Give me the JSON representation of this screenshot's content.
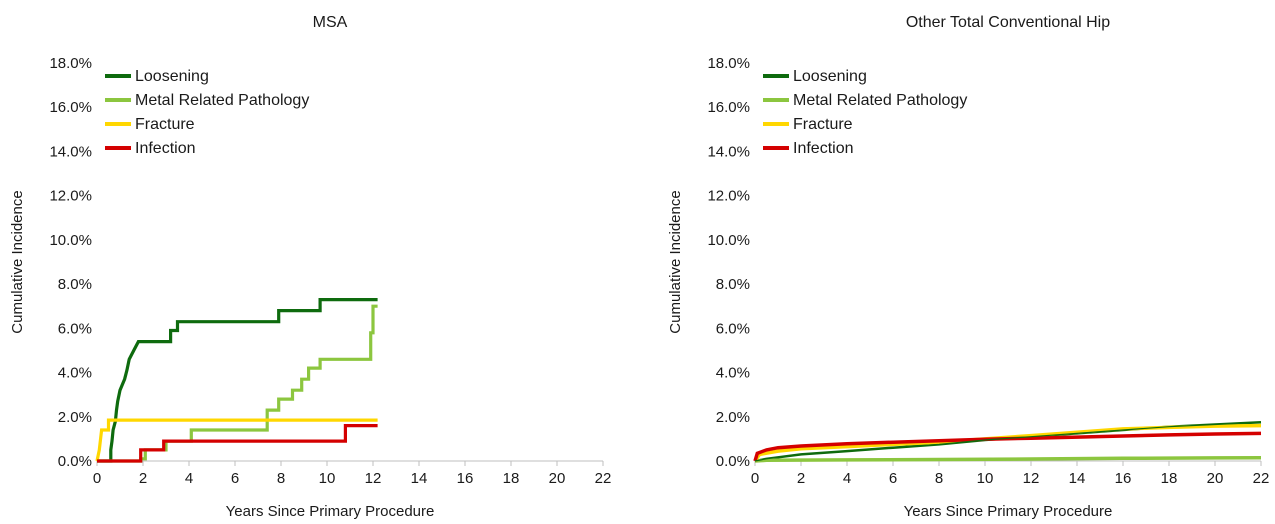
{
  "chart_data": [
    {
      "type": "line",
      "title": "MSA",
      "xlabel": "Years Since Primary Procedure",
      "ylabel": "Cumulative Incidence",
      "xlim": [
        0,
        22
      ],
      "ylim": [
        0,
        18
      ],
      "xticks": [
        0,
        2,
        4,
        6,
        8,
        10,
        12,
        14,
        16,
        18,
        20,
        22
      ],
      "yticks": [
        "0.0%",
        "2.0%",
        "4.0%",
        "6.0%",
        "8.0%",
        "10.0%",
        "12.0%",
        "14.0%",
        "16.0%",
        "18.0%"
      ],
      "legend_position": "top-left",
      "step": true,
      "series": [
        {
          "name": "Loosening",
          "color": "#0e6b0e",
          "points": [
            [
              0,
              0
            ],
            [
              0.6,
              0
            ],
            [
              0.6,
              0.5
            ],
            [
              0.65,
              0.9
            ],
            [
              0.7,
              1.4
            ],
            [
              0.8,
              1.8
            ],
            [
              0.85,
              2.3
            ],
            [
              0.9,
              2.7
            ],
            [
              1.0,
              3.2
            ],
            [
              1.2,
              3.7
            ],
            [
              1.3,
              4.1
            ],
            [
              1.4,
              4.6
            ],
            [
              1.6,
              5.0
            ],
            [
              1.8,
              5.4
            ],
            [
              3.2,
              5.4
            ],
            [
              3.2,
              5.9
            ],
            [
              3.5,
              5.9
            ],
            [
              3.5,
              6.3
            ],
            [
              7.9,
              6.3
            ],
            [
              7.9,
              6.8
            ],
            [
              9.7,
              6.8
            ],
            [
              9.7,
              7.3
            ],
            [
              12.2,
              7.3
            ]
          ]
        },
        {
          "name": "Metal Related Pathology",
          "color": "#8cc63f",
          "points": [
            [
              0,
              0
            ],
            [
              1.9,
              0
            ],
            [
              1.9,
              0.1
            ],
            [
              2.1,
              0.1
            ],
            [
              2.1,
              0.5
            ],
            [
              3.0,
              0.5
            ],
            [
              3.0,
              0.9
            ],
            [
              4.1,
              0.9
            ],
            [
              4.1,
              1.4
            ],
            [
              7.4,
              1.4
            ],
            [
              7.4,
              2.3
            ],
            [
              7.9,
              2.3
            ],
            [
              7.9,
              2.8
            ],
            [
              8.5,
              2.8
            ],
            [
              8.5,
              3.2
            ],
            [
              8.9,
              3.2
            ],
            [
              8.9,
              3.7
            ],
            [
              9.2,
              3.7
            ],
            [
              9.2,
              4.2
            ],
            [
              9.7,
              4.2
            ],
            [
              9.7,
              4.6
            ],
            [
              11.9,
              4.6
            ],
            [
              11.9,
              5.8
            ],
            [
              12.0,
              5.8
            ],
            [
              12.0,
              7.0
            ],
            [
              12.2,
              7.0
            ]
          ]
        },
        {
          "name": "Fracture",
          "color": "#ffd700",
          "points": [
            [
              0,
              0
            ],
            [
              0.1,
              0.5
            ],
            [
              0.2,
              1.4
            ],
            [
              0.5,
              1.4
            ],
            [
              0.5,
              1.85
            ],
            [
              12.2,
              1.85
            ]
          ]
        },
        {
          "name": "Infection",
          "color": "#d40000",
          "points": [
            [
              0,
              0
            ],
            [
              1.9,
              0
            ],
            [
              1.9,
              0.5
            ],
            [
              2.9,
              0.5
            ],
            [
              2.9,
              0.9
            ],
            [
              10.8,
              0.9
            ],
            [
              10.8,
              1.6
            ],
            [
              12.2,
              1.6
            ]
          ]
        }
      ]
    },
    {
      "type": "line",
      "title": "Other Total Conventional Hip",
      "xlabel": "Years Since Primary Procedure",
      "ylabel": "Cumulative Incidence",
      "xlim": [
        0,
        22
      ],
      "ylim": [
        0,
        18
      ],
      "xticks": [
        0,
        2,
        4,
        6,
        8,
        10,
        12,
        14,
        16,
        18,
        20,
        22
      ],
      "yticks": [
        "0.0%",
        "2.0%",
        "4.0%",
        "6.0%",
        "8.0%",
        "10.0%",
        "12.0%",
        "14.0%",
        "16.0%",
        "18.0%"
      ],
      "legend_position": "top-left",
      "step": false,
      "series": [
        {
          "name": "Loosening",
          "color": "#0e6b0e",
          "points": [
            [
              0,
              0
            ],
            [
              0.5,
              0.1
            ],
            [
              2,
              0.3
            ],
            [
              4,
              0.45
            ],
            [
              6,
              0.6
            ],
            [
              8,
              0.75
            ],
            [
              10,
              0.95
            ],
            [
              12,
              1.1
            ],
            [
              14,
              1.25
            ],
            [
              16,
              1.4
            ],
            [
              18,
              1.55
            ],
            [
              20,
              1.65
            ],
            [
              21,
              1.7
            ],
            [
              22,
              1.75
            ]
          ]
        },
        {
          "name": "Metal Related Pathology",
          "color": "#8cc63f",
          "points": [
            [
              0,
              0
            ],
            [
              0.5,
              0.03
            ],
            [
              4,
              0.05
            ],
            [
              8,
              0.07
            ],
            [
              12,
              0.09
            ],
            [
              16,
              0.12
            ],
            [
              20,
              0.14
            ],
            [
              22,
              0.15
            ]
          ]
        },
        {
          "name": "Fracture",
          "color": "#ffd700",
          "points": [
            [
              0,
              0
            ],
            [
              0.2,
              0.3
            ],
            [
              1,
              0.45
            ],
            [
              2,
              0.55
            ],
            [
              4,
              0.65
            ],
            [
              6,
              0.75
            ],
            [
              8,
              0.85
            ],
            [
              10,
              1.0
            ],
            [
              12,
              1.15
            ],
            [
              14,
              1.3
            ],
            [
              16,
              1.45
            ],
            [
              18,
              1.52
            ],
            [
              20,
              1.58
            ],
            [
              22,
              1.6
            ]
          ]
        },
        {
          "name": "Infection",
          "color": "#d40000",
          "points": [
            [
              0,
              0
            ],
            [
              0.1,
              0.35
            ],
            [
              0.5,
              0.5
            ],
            [
              1,
              0.6
            ],
            [
              2,
              0.68
            ],
            [
              4,
              0.78
            ],
            [
              6,
              0.85
            ],
            [
              8,
              0.92
            ],
            [
              10,
              0.98
            ],
            [
              12,
              1.03
            ],
            [
              14,
              1.08
            ],
            [
              16,
              1.13
            ],
            [
              18,
              1.18
            ],
            [
              20,
              1.22
            ],
            [
              22,
              1.25
            ]
          ]
        }
      ]
    }
  ]
}
